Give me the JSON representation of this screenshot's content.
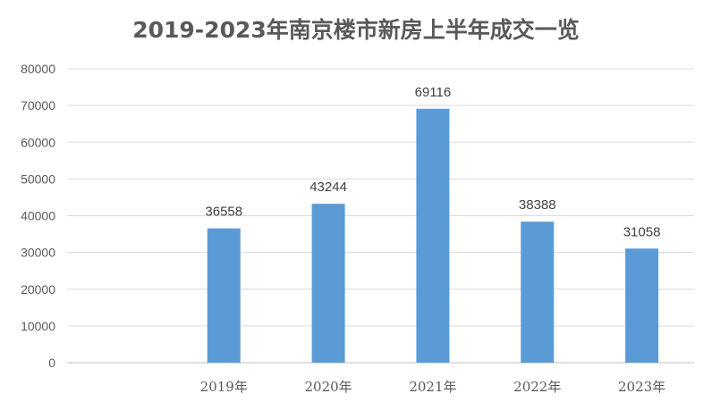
{
  "chart_data": {
    "type": "bar",
    "title": "2019-2023年南京楼市新房上半年成交一览",
    "xlabel": "",
    "ylabel": "",
    "categories": [
      "",
      "2019年",
      "2020年",
      "2021年",
      "2022年",
      "2023年"
    ],
    "values": [
      null,
      36558,
      43244,
      69116,
      38388,
      31058
    ],
    "data_labels": [
      "",
      "36558",
      "43244",
      "69116",
      "38388",
      "31058"
    ],
    "ylim": [
      0,
      80000
    ],
    "yticks": [
      0,
      10000,
      20000,
      30000,
      40000,
      50000,
      60000,
      70000,
      80000
    ],
    "ytick_labels": [
      "0",
      "10000",
      "20000",
      "30000",
      "40000",
      "50000",
      "60000",
      "70000",
      "80000"
    ],
    "grid": true,
    "legend": "none",
    "colors": {
      "bar": "#5b9bd5",
      "grid": "#d9d9d9"
    }
  }
}
